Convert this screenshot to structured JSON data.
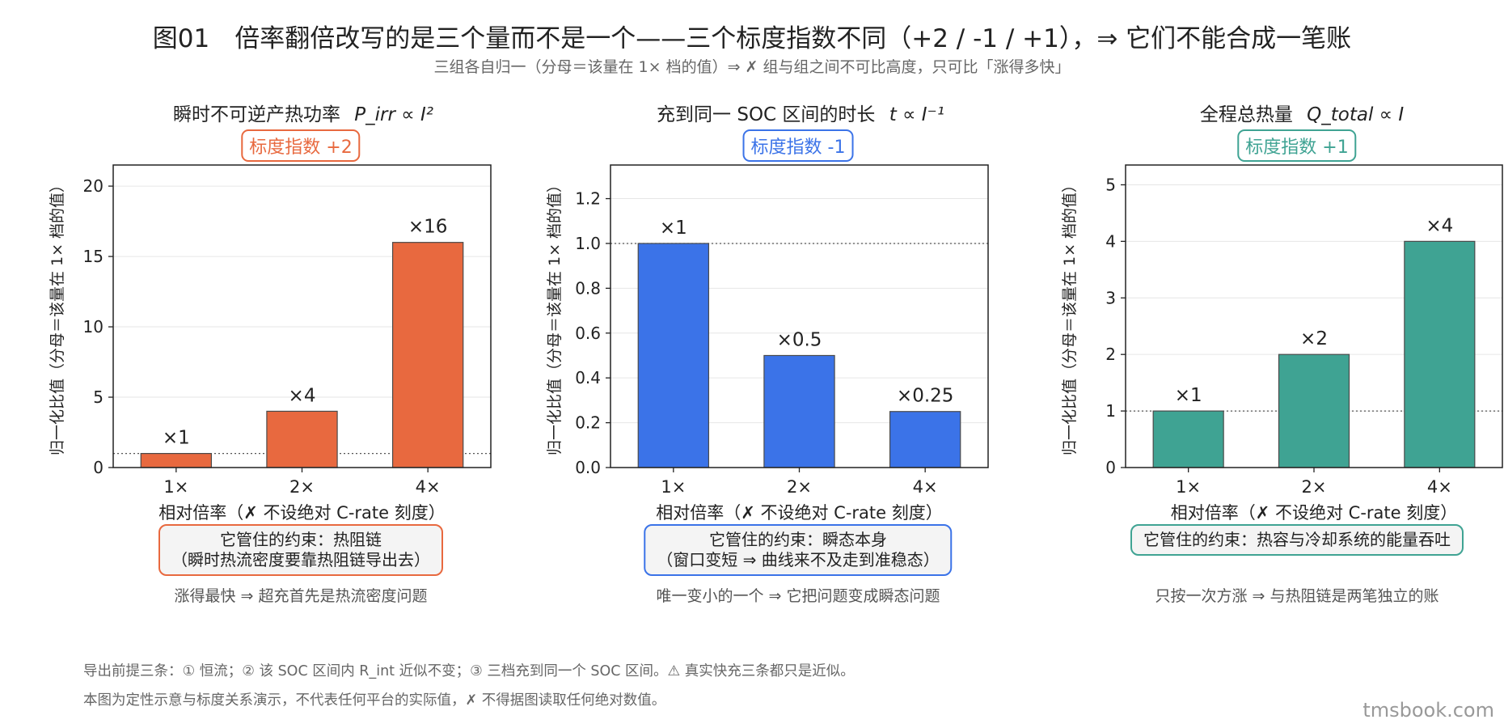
{
  "title": "图01　倍率翻倍改写的是三个量而不是一个——三个标度指数不同（+2 / -1 / +1），⇒ 它们不能合成一笔账",
  "subtitle": "三组各自归一（分母＝该量在 1× 档的值）⇒ ✗ 组与组之间不可比高度，只可比「涨得多快」",
  "colors": {
    "p1": "#e8693f",
    "p2": "#3b73e8",
    "p3": "#3fa393"
  },
  "panels": [
    {
      "title_text": "瞬时不可逆产热功率",
      "title_formula": "P_irr ∝ I²",
      "tag": "标度指数 +2",
      "constraint_line1": "它管住的约束：热阻链",
      "constraint_line2": "（瞬时热流密度要靠热阻链导出去）",
      "note": "涨得最快 ⇒ 超充首先是热流密度问题"
    },
    {
      "title_text": "充到同一 SOC 区间的时长",
      "title_formula": "t ∝ I⁻¹",
      "tag": "标度指数 -1",
      "constraint_line1": "它管住的约束：瞬态本身",
      "constraint_line2": "（窗口变短 ⇒ 曲线来不及走到准稳态）",
      "note": "唯一变小的一个 ⇒ 它把问题变成瞬态问题"
    },
    {
      "title_text": "全程总热量",
      "title_formula": "Q_total ∝ I",
      "tag": "标度指数 +1",
      "constraint_line1": "它管住的约束：热容与冷却系统的能量吞吐",
      "constraint_line2": "",
      "note": "只按一次方涨 ⇒ 与热阻链是两笔独立的账"
    }
  ],
  "chart_data": [
    {
      "type": "bar",
      "categories": [
        "1×",
        "2×",
        "4×"
      ],
      "values": [
        1,
        4,
        16
      ],
      "value_labels": [
        "×1",
        "×4",
        "×16"
      ],
      "ylim": [
        0,
        21.5
      ],
      "yticks": [
        0,
        5,
        10,
        15,
        20
      ],
      "ytick_labels": [
        "0",
        "5",
        "10",
        "15",
        "20"
      ],
      "reference_line": 1,
      "xlabel": "相对倍率（✗ 不设绝对 C-rate 刻度）",
      "ylabel": "归一化比值（分母＝该量在 1× 档的值）",
      "grid": true
    },
    {
      "type": "bar",
      "categories": [
        "1×",
        "2×",
        "4×"
      ],
      "values": [
        1,
        0.5,
        0.25
      ],
      "value_labels": [
        "×1",
        "×0.5",
        "×0.25"
      ],
      "ylim": [
        0,
        1.35
      ],
      "yticks": [
        0,
        0.2,
        0.4,
        0.6,
        0.8,
        1.0,
        1.2
      ],
      "ytick_labels": [
        "0.0",
        "0.2",
        "0.4",
        "0.6",
        "0.8",
        "1.0",
        "1.2"
      ],
      "reference_line": 1,
      "xlabel": "相对倍率（✗ 不设绝对 C-rate 刻度）",
      "ylabel": "归一化比值（分母＝该量在 1× 档的值）",
      "grid": true
    },
    {
      "type": "bar",
      "categories": [
        "1×",
        "2×",
        "4×"
      ],
      "values": [
        1,
        2,
        4
      ],
      "value_labels": [
        "×1",
        "×2",
        "×4"
      ],
      "ylim": [
        0,
        5.35
      ],
      "yticks": [
        0,
        1,
        2,
        3,
        4,
        5
      ],
      "ytick_labels": [
        "0",
        "1",
        "2",
        "3",
        "4",
        "5"
      ],
      "reference_line": 1,
      "xlabel": "相对倍率（✗ 不设绝对 C-rate 刻度）",
      "ylabel": "归一化比值（分母＝该量在 1× 档的值）",
      "grid": true
    }
  ],
  "footnotes": [
    "导出前提三条：① 恒流；② 该 SOC 区间内 R_int 近似不变；③ 三档充到同一个 SOC 区间。⚠ 真实快充三条都只是近似。",
    "本图为定性示意与标度关系演示，不代表任何平台的实际值，✗ 不得据图读取任何绝对数值。"
  ],
  "brand": "tmsbook.com"
}
